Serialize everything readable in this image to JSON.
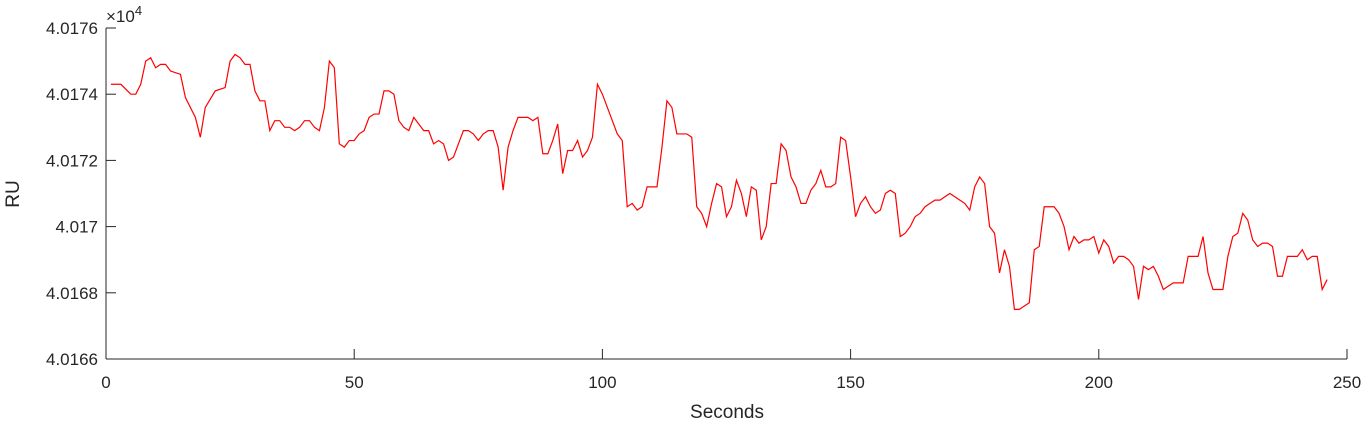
{
  "chart_data": {
    "type": "line",
    "xlabel": "Seconds",
    "ylabel": "RU",
    "exponent_base": "×10",
    "exponent_power": "4",
    "xlim": [
      0,
      250
    ],
    "ylim": [
      40166,
      40176
    ],
    "xticks": [
      0,
      50,
      100,
      150,
      200,
      250
    ],
    "xtick_labels": [
      "0",
      "50",
      "100",
      "150",
      "200",
      "250"
    ],
    "yticks": [
      40166,
      40168,
      40170,
      40172,
      40174,
      40176
    ],
    "ytick_labels": [
      "4.0166",
      "4.0168",
      "4.017",
      "4.0172",
      "4.0174",
      "4.0176"
    ],
    "grid": false,
    "line_color": "#ff0000",
    "axis_color": "#262626",
    "series": [
      {
        "x": [
          1,
          3,
          5,
          6,
          7,
          8,
          9,
          10,
          11,
          12,
          13,
          15,
          16,
          18,
          19,
          20,
          22,
          24,
          25,
          26,
          27,
          28,
          29,
          30,
          31,
          32,
          33,
          34,
          35,
          36,
          37,
          38,
          39,
          40,
          41,
          42,
          43,
          44,
          45,
          46,
          47,
          48,
          49,
          50,
          51,
          52,
          53,
          54,
          55,
          56,
          57,
          58,
          59,
          60,
          61,
          62,
          63,
          64,
          65,
          66,
          67,
          68,
          69,
          70,
          71,
          72,
          73,
          74,
          75,
          76,
          77,
          78,
          79,
          80,
          81,
          82,
          83,
          84,
          85,
          86,
          87,
          88,
          89,
          90,
          91,
          92,
          93,
          94,
          95,
          96,
          97,
          98,
          99,
          100,
          101,
          102,
          103,
          104,
          105,
          106,
          107,
          108,
          109,
          110,
          111,
          112,
          113,
          114,
          115,
          116,
          117,
          118,
          119,
          120,
          121,
          122,
          123,
          124,
          125,
          126,
          127,
          128,
          129,
          130,
          131,
          132,
          133,
          134,
          135,
          136,
          137,
          138,
          139,
          140,
          141,
          142,
          143,
          144,
          145,
          146,
          147,
          148,
          149,
          150,
          151,
          152,
          153,
          154,
          155,
          156,
          157,
          158,
          159,
          160,
          161,
          162,
          163,
          164,
          165,
          166,
          167,
          168,
          169,
          170,
          171,
          172,
          173,
          174,
          175,
          176,
          177,
          178,
          179,
          180,
          181,
          182,
          183,
          184,
          185,
          186,
          187,
          188,
          189,
          190,
          191,
          192,
          193,
          194,
          195,
          196,
          197,
          198,
          199,
          200,
          201,
          202,
          203,
          204,
          205,
          206,
          207,
          208,
          209,
          210,
          211,
          212,
          213,
          214,
          215,
          216,
          217,
          218,
          219,
          220,
          221,
          222,
          223,
          224,
          225,
          226,
          227,
          228,
          229,
          230,
          231,
          232,
          233,
          234,
          235,
          236,
          237,
          238,
          239,
          240,
          241,
          242,
          243,
          244,
          245,
          246
        ],
        "y": [
          40174.3,
          40174.3,
          40174.0,
          40174.0,
          40174.3,
          40175.0,
          40175.1,
          40174.8,
          40174.9,
          40174.9,
          40174.7,
          40174.6,
          40173.9,
          40173.3,
          40172.7,
          40173.6,
          40174.1,
          40174.2,
          40175.0,
          40175.2,
          40175.1,
          40174.9,
          40174.9,
          40174.1,
          40173.8,
          40173.8,
          40172.9,
          40173.2,
          40173.2,
          40173.0,
          40173.0,
          40172.9,
          40173.0,
          40173.2,
          40173.2,
          40173.0,
          40172.9,
          40173.6,
          40175.0,
          40174.8,
          40172.5,
          40172.4,
          40172.6,
          40172.6,
          40172.8,
          40172.9,
          40173.3,
          40173.4,
          40173.4,
          40174.1,
          40174.1,
          40174.0,
          40173.2,
          40173.0,
          40172.9,
          40173.3,
          40173.1,
          40172.9,
          40172.9,
          40172.5,
          40172.6,
          40172.5,
          40172.0,
          40172.1,
          40172.5,
          40172.9,
          40172.9,
          40172.8,
          40172.6,
          40172.8,
          40172.9,
          40172.9,
          40172.4,
          40171.1,
          40172.4,
          40172.9,
          40173.3,
          40173.3,
          40173.3,
          40173.2,
          40173.3,
          40172.2,
          40172.2,
          40172.6,
          40173.1,
          40171.6,
          40172.3,
          40172.3,
          40172.6,
          40172.1,
          40172.3,
          40172.7,
          40174.3,
          40174.0,
          40173.6,
          40173.2,
          40172.8,
          40172.6,
          40170.6,
          40170.7,
          40170.5,
          40170.6,
          40171.2,
          40171.2,
          40171.2,
          40172.4,
          40173.8,
          40173.6,
          40172.8,
          40172.8,
          40172.8,
          40172.7,
          40170.6,
          40170.4,
          40170.0,
          40170.7,
          40171.3,
          40171.2,
          40170.3,
          40170.6,
          40171.4,
          40171.0,
          40170.3,
          40171.2,
          40171.1,
          40169.6,
          40170.0,
          40171.3,
          40171.3,
          40172.5,
          40172.3,
          40171.5,
          40171.2,
          40170.7,
          40170.7,
          40171.1,
          40171.3,
          40171.7,
          40171.2,
          40171.2,
          40171.3,
          40172.7,
          40172.6,
          40171.5,
          40170.3,
          40170.7,
          40170.9,
          40170.6,
          40170.4,
          40170.5,
          40171.0,
          40171.1,
          40171.0,
          40169.7,
          40169.8,
          40170.0,
          40170.3,
          40170.4,
          40170.6,
          40170.7,
          40170.8,
          40170.8,
          40170.9,
          40171.0,
          40170.9,
          40170.8,
          40170.7,
          40170.5,
          40171.2,
          40171.5,
          40171.3,
          40170.0,
          40169.8,
          40168.6,
          40169.3,
          40168.8,
          40167.5,
          40167.5,
          40167.6,
          40167.7,
          40169.3,
          40169.4,
          40170.6,
          40170.6,
          40170.6,
          40170.4,
          40170.0,
          40169.3,
          40169.7,
          40169.5,
          40169.6,
          40169.6,
          40169.7,
          40169.2,
          40169.6,
          40169.4,
          40168.9,
          40169.1,
          40169.1,
          40169.0,
          40168.8,
          40167.8,
          40168.8,
          40168.7,
          40168.8,
          40168.5,
          40168.1,
          40168.2,
          40168.3,
          40168.3,
          40168.3,
          40169.1,
          40169.1,
          40169.1,
          40169.7,
          40168.6,
          40168.1,
          40168.1,
          40168.1,
          40169.1,
          40169.7,
          40169.8,
          40170.4,
          40170.2,
          40169.6,
          40169.4,
          40169.5,
          40169.5,
          40169.4,
          40168.5,
          40168.5,
          40169.1,
          40169.1,
          40169.1,
          40169.3,
          40169.0,
          40169.1,
          40169.1,
          40168.1,
          40168.4
        ]
      }
    ]
  }
}
